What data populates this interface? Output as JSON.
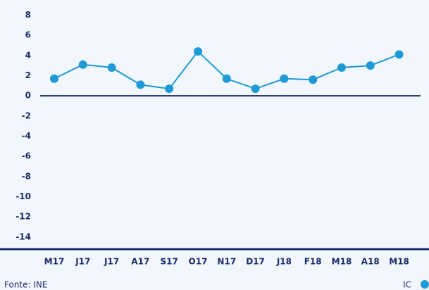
{
  "chart_data": {
    "type": "line",
    "categories": [
      "M17",
      "J17",
      "J17",
      "A17",
      "S17",
      "O17",
      "N17",
      "D17",
      "J18",
      "F18",
      "M18",
      "A18",
      "M18"
    ],
    "series": [
      {
        "name": "IC",
        "color": "#1e9ad6",
        "values": [
          1.7,
          3.1,
          2.8,
          1.1,
          0.7,
          4.4,
          1.7,
          0.7,
          1.7,
          1.6,
          2.8,
          3.0,
          4.1
        ]
      }
    ],
    "ylim": [
      -15.2,
      8.8
    ],
    "yticks": [
      8,
      6,
      4,
      2,
      0,
      -2,
      -4,
      -6,
      -8,
      -10,
      -12,
      -14
    ],
    "source": "Fonte: INE"
  }
}
